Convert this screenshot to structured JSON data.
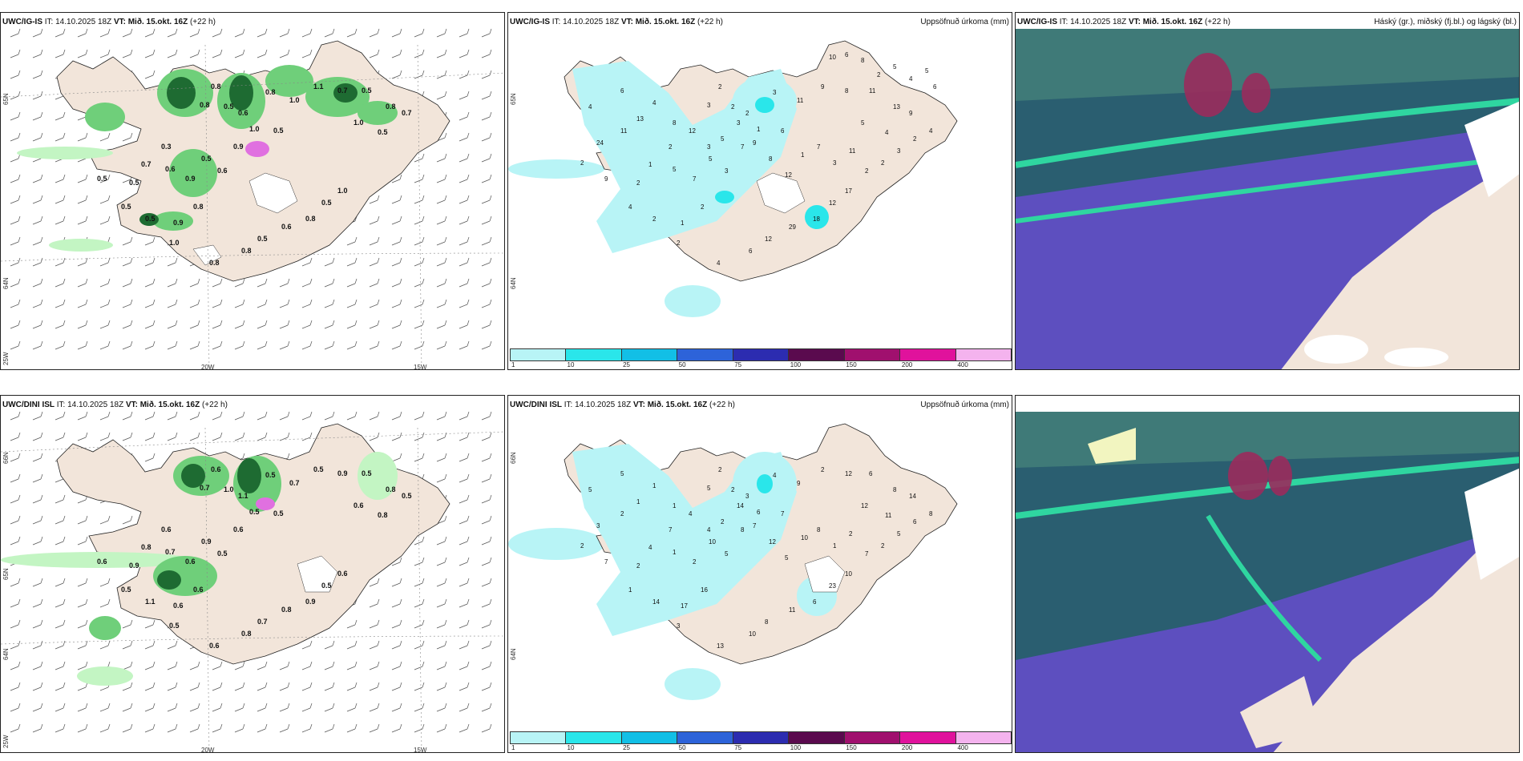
{
  "colors": {
    "land": "#f2e5da",
    "precip_light": "#c3f5c3",
    "precip_mid": "#6fcf7a",
    "precip_dark": "#1e6b32",
    "accum_light": "#b8f4f6",
    "accum_mid": "#2ae6ea",
    "cloud_high": "#2a5e70",
    "cloud_mid": "#2fd6a0",
    "cloud_low": "#5d4fbf",
    "cloud_pink": "#9a2b5c"
  },
  "rows": [
    {
      "model_id": "UWC/IG-IS",
      "panels": [
        {
          "kind": "wind_precip",
          "title_model": "UWC/IG-IS",
          "title_it": " IT: 14.10.2025 18Z ",
          "title_vt_label": "VT: Mið. 15.okt. 16Z",
          "title_lead": " (+22 h)",
          "lat_labels": [
            "65N",
            "64N"
          ],
          "lon_labels": [
            "25W",
            "20W",
            "15W"
          ],
          "values": [
            "0.8",
            "0.5",
            "0.6",
            "0.8",
            "0.8",
            "1.0",
            "0.3",
            "0.7",
            "0.5",
            "0.5",
            "0.6",
            "0.9",
            "0.5",
            "0.6",
            "0.9",
            "0.5",
            "1.0",
            "1.1",
            "0.7",
            "0.5",
            "0.8",
            "0.7",
            "1.0",
            "0.5",
            "0.5",
            "0.9",
            "0.8",
            "1.0",
            "0.8",
            "0.8",
            "0.5",
            "0.6",
            "0.8",
            "0.5",
            "1.0",
            "0.5"
          ]
        },
        {
          "kind": "accum",
          "title_model": "UWC/IG-IS",
          "title_it": " IT: 14.10.2025 18Z ",
          "title_vt_label": "VT: Mið. 15.okt. 16Z",
          "title_lead": " (+22 h)",
          "right_label": "Uppsöfnuð úrkoma (mm)",
          "lat_labels": [
            "65N",
            "64N"
          ],
          "values": [
            "2",
            "2",
            "2",
            "3",
            "3",
            "1",
            "2",
            "1",
            "2",
            "4",
            "5",
            "7",
            "5",
            "3",
            "7",
            "6",
            "11",
            "9",
            "8",
            "11",
            "13",
            "9",
            "5",
            "4",
            "2",
            "1",
            "2",
            "2",
            "4",
            "6",
            "12",
            "29",
            "18",
            "12",
            "17",
            "9",
            "11",
            "4",
            "24",
            "2",
            "6",
            "13",
            "4",
            "8",
            "12",
            "3",
            "5",
            "3",
            "9",
            "8",
            "12",
            "1",
            "7",
            "3",
            "11",
            "2",
            "2",
            "3",
            "2",
            "4",
            "6",
            "5",
            "4",
            "5",
            "2",
            "8",
            "6",
            "10"
          ]
        },
        {
          "kind": "cloud",
          "title_model": "UWC/IG-IS",
          "title_it": " IT: 14.10.2025 18Z ",
          "title_vt_label": "VT: Mið. 15.okt. 16Z",
          "title_lead": " (+22 h)",
          "right_label": "Háský (gr.), miðský (fj.bl.) og lágský (bl.)"
        }
      ]
    },
    {
      "model_id": "UWC/DINI ISL",
      "panels": [
        {
          "kind": "wind_precip",
          "title_model": "UWC/DINI ISL",
          "title_it": " IT: 14.10.2025 18Z ",
          "title_vt_label": "VT: Mið. 15.okt. 16Z",
          "title_lead": " (+22 h)",
          "lat_labels": [
            "66N",
            "65N",
            "64N"
          ],
          "lon_labels": [
            "25W",
            "20W",
            "15W"
          ],
          "values": [
            "0.6",
            "1.0",
            "1.1",
            "0.5",
            "0.7",
            "0.5",
            "0.6",
            "0.8",
            "0.9",
            "0.5",
            "0.7",
            "0.6",
            "0.9",
            "0.5",
            "0.6",
            "0.5",
            "0.7",
            "0.5",
            "0.9",
            "0.5",
            "0.8",
            "0.5",
            "0.6",
            "0.8",
            "1.1",
            "0.6",
            "0.6",
            "0.5",
            "0.6",
            "0.8",
            "0.7",
            "0.8",
            "0.9",
            "0.5",
            "0.6",
            "0.6"
          ]
        },
        {
          "kind": "accum",
          "title_model": "UWC/DINI ISL",
          "title_it": " IT: 14.10.2025 18Z ",
          "title_vt_label": "VT: Mið. 15.okt. 16Z",
          "title_lead": " (+22 h)",
          "right_label": "Uppsöfnuð úrkoma (mm)",
          "lat_labels": [
            "66N",
            "64N"
          ],
          "values": [
            "2",
            "2",
            "3",
            "4",
            "5",
            "6",
            "7",
            "4",
            "2",
            "1",
            "1",
            "2",
            "10",
            "5",
            "8",
            "7",
            "9",
            "2",
            "12",
            "6",
            "8",
            "14",
            "12",
            "11",
            "14",
            "17",
            "16",
            "3",
            "13",
            "10",
            "8",
            "11",
            "6",
            "23",
            "10",
            "7",
            "2",
            "5",
            "3",
            "2",
            "5",
            "1",
            "1",
            "1",
            "4",
            "4",
            "2",
            "14",
            "7",
            "12",
            "5",
            "10",
            "8",
            "1",
            "2",
            "7",
            "2",
            "5",
            "6",
            "8"
          ]
        }
      ]
    }
  ],
  "colorbar": {
    "labels": [
      "1",
      "10",
      "25",
      "50",
      "75",
      "100",
      "150",
      "200",
      "400"
    ],
    "colors": [
      "#b8f4f6",
      "#2ae6ea",
      "#12bfe6",
      "#2d63d9",
      "#2c2cb0",
      "#5a0a4e",
      "#a0106e",
      "#e0129c",
      "#f4b3ee"
    ]
  }
}
